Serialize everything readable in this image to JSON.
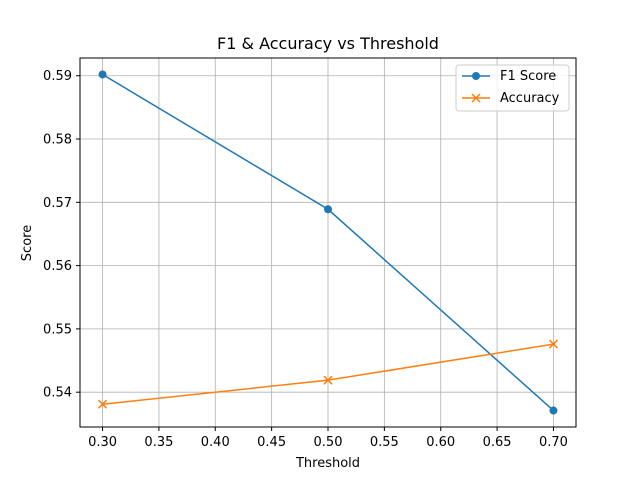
{
  "chart_data": {
    "type": "line",
    "title": "F1 & Accuracy vs Threshold",
    "xlabel": "Threshold",
    "ylabel": "Score",
    "x": [
      0.3,
      0.5,
      0.7
    ],
    "xlim": [
      0.28,
      0.72
    ],
    "ylim": [
      0.5345,
      0.5928
    ],
    "xticks": [
      0.3,
      0.35,
      0.4,
      0.45,
      0.5,
      0.55,
      0.6,
      0.65,
      0.7
    ],
    "xtick_labels": [
      "0.30",
      "0.35",
      "0.40",
      "0.45",
      "0.50",
      "0.55",
      "0.60",
      "0.65",
      "0.70"
    ],
    "yticks": [
      0.54,
      0.55,
      0.56,
      0.57,
      0.58,
      0.59
    ],
    "ytick_labels": [
      "0.54",
      "0.55",
      "0.56",
      "0.57",
      "0.58",
      "0.59"
    ],
    "grid": true,
    "legend_position": "top-right",
    "series": [
      {
        "name": "F1 Score",
        "values": [
          0.5902,
          0.5689,
          0.5371
        ],
        "color": "#1f77b4",
        "marker": "circle"
      },
      {
        "name": "Accuracy",
        "values": [
          0.5381,
          0.5419,
          0.5476
        ],
        "color": "#ff7f0e",
        "marker": "x"
      }
    ]
  }
}
